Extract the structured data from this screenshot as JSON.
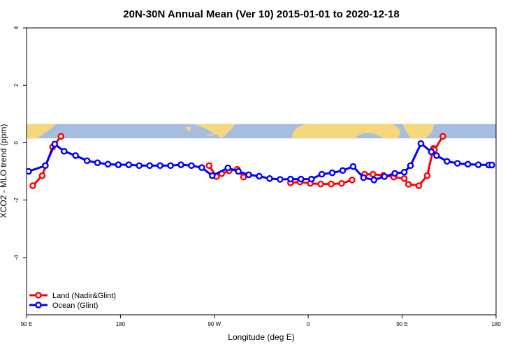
{
  "chart_data": {
    "type": "line",
    "title": "20N-30N Annual Mean (Ver 10)   2015-01-01 to 2020-12-18",
    "xlabel": "Longitude (deg E)",
    "ylabel": "XCO2 - MLO trend (ppm)",
    "xlim": [
      90,
      540
    ],
    "ylim": [
      -6,
      4
    ],
    "x_ticks": [
      {
        "value": 90,
        "label": "90 E"
      },
      {
        "value": 180,
        "label": "180"
      },
      {
        "value": 270,
        "label": "90 W"
      },
      {
        "value": 360,
        "label": "0"
      },
      {
        "value": 450,
        "label": "90 E"
      },
      {
        "value": 540,
        "label": "180"
      }
    ],
    "y_ticks": [
      {
        "value": 4,
        "label": "4"
      },
      {
        "value": 2,
        "label": "2"
      },
      {
        "value": 0,
        "label": "0"
      },
      {
        "value": -2,
        "label": "-2"
      },
      {
        "value": -4,
        "label": "-4"
      }
    ],
    "legend_position": "bottom-left",
    "map_strip": {
      "ymin": 0.15,
      "ymax": 0.65,
      "ocean_color": "#a7bddf",
      "land_color": "#f6d77e"
    },
    "series": [
      {
        "name": "Land (Nadir&Glint)",
        "color": "#ff0000",
        "segments": [
          {
            "x": [
              96,
              105,
              115,
              123
            ],
            "y": [
              -1.5,
              -1.15,
              -0.15,
              0.22
            ]
          },
          {
            "x": [
              265,
              272,
              277,
              284,
              292,
              298
            ],
            "y": [
              -0.8,
              -1.18,
              -1.08,
              -0.98,
              -0.93,
              -1.2
            ]
          },
          {
            "x": [
              343,
              352,
              362,
              372,
              382,
              392,
              402
            ],
            "y": [
              -1.4,
              -1.37,
              -1.42,
              -1.44,
              -1.44,
              -1.42,
              -1.3
            ]
          },
          {
            "x": [
              414,
              422,
              432,
              442,
              452,
              456,
              466,
              474,
              480
            ],
            "y": [
              -1.1,
              -1.1,
              -1.14,
              -1.2,
              -1.25,
              -1.45,
              -1.5,
              -1.15,
              -0.2
            ]
          },
          {
            "x": [
              481,
              489
            ],
            "y": [
              -0.25,
              0.22
            ]
          }
        ]
      },
      {
        "name": "Ocean (Glint)",
        "color": "#0000ff",
        "segments": [
          {
            "x": [
              92,
              108,
              117,
              126,
              137,
              148,
              158,
              168,
              178,
              188,
              198,
              208,
              218,
              228,
              238,
              248,
              258,
              268,
              283,
              293,
              303,
              313,
              323,
              333,
              343,
              353,
              363,
              373,
              383,
              393,
              403,
              413,
              423,
              433,
              443,
              452,
              458,
              468,
              478,
              483,
              493,
              503,
              513,
              523,
              533,
              536
            ],
            "y": [
              -1.0,
              -0.8,
              -0.05,
              -0.3,
              -0.45,
              -0.63,
              -0.7,
              -0.75,
              -0.77,
              -0.77,
              -0.8,
              -0.8,
              -0.8,
              -0.8,
              -0.77,
              -0.8,
              -0.87,
              -1.15,
              -0.88,
              -1.0,
              -1.12,
              -1.17,
              -1.25,
              -1.28,
              -1.27,
              -1.27,
              -1.27,
              -1.1,
              -1.05,
              -0.97,
              -0.83,
              -1.22,
              -1.3,
              -1.18,
              -1.07,
              -1.03,
              -0.8,
              -0.03,
              -0.32,
              -0.45,
              -0.65,
              -0.72,
              -0.75,
              -0.77,
              -0.78,
              -0.78
            ]
          }
        ]
      }
    ]
  }
}
